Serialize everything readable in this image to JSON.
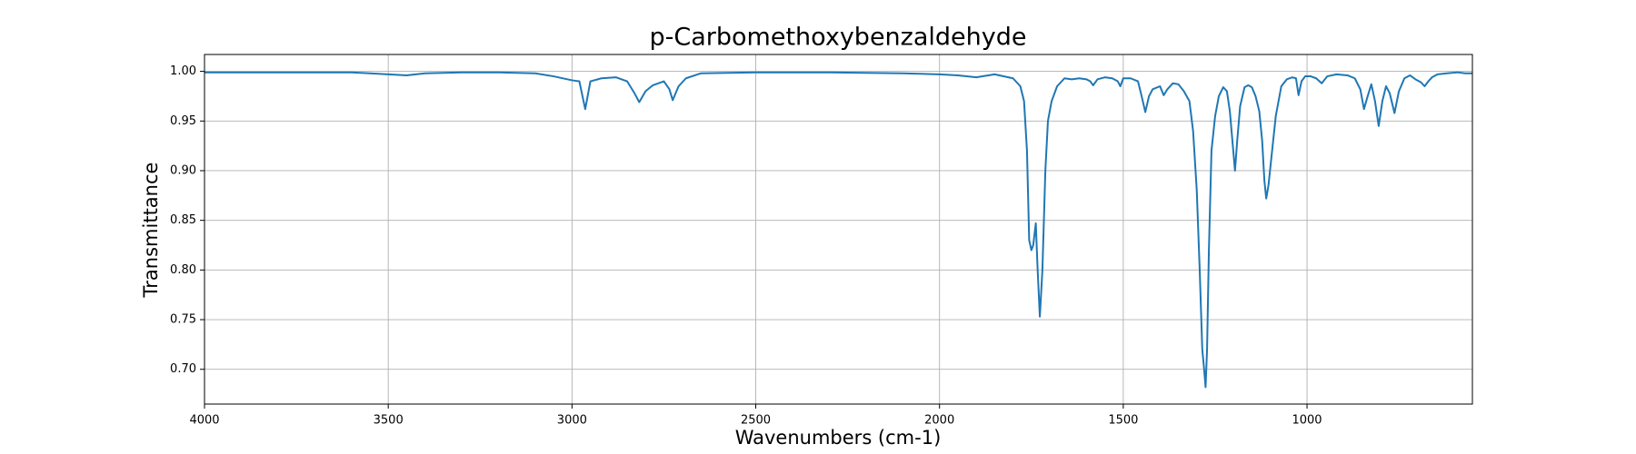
{
  "chart_data": {
    "type": "line",
    "title": "p-Carbomethoxybenzaldehyde",
    "x_label": "Wavenumbers (cm-1)",
    "y_label": "Transmittance",
    "color": "#1f77b4",
    "grid": true,
    "x": [
      4000,
      3900,
      3800,
      3700,
      3600,
      3550,
      3500,
      3450,
      3400,
      3300,
      3200,
      3100,
      3050,
      3000,
      2980,
      2964,
      2950,
      2920,
      2880,
      2850,
      2830,
      2817,
      2800,
      2780,
      2750,
      2735,
      2726,
      2710,
      2690,
      2650,
      2500,
      2300,
      2100,
      2000,
      1950,
      1900,
      1850,
      1800,
      1780,
      1770,
      1762,
      1756,
      1750,
      1745,
      1738,
      1733,
      1727,
      1720,
      1712,
      1705,
      1695,
      1680,
      1660,
      1640,
      1620,
      1600,
      1590,
      1582,
      1570,
      1550,
      1530,
      1515,
      1508,
      1500,
      1480,
      1460,
      1450,
      1440,
      1430,
      1420,
      1400,
      1390,
      1380,
      1365,
      1350,
      1335,
      1320,
      1310,
      1300,
      1292,
      1285,
      1280,
      1276,
      1272,
      1267,
      1260,
      1250,
      1240,
      1228,
      1218,
      1210,
      1203,
      1196,
      1190,
      1182,
      1170,
      1160,
      1150,
      1140,
      1130,
      1122,
      1116,
      1111,
      1105,
      1095,
      1085,
      1070,
      1055,
      1040,
      1030,
      1023,
      1015,
      1005,
      990,
      975,
      960,
      945,
      920,
      890,
      870,
      855,
      845,
      835,
      825,
      815,
      805,
      795,
      785,
      775,
      762,
      750,
      735,
      720,
      705,
      690,
      680,
      670,
      660,
      645,
      620,
      590,
      570,
      550
    ],
    "values": [
      0.999,
      0.999,
      0.999,
      0.999,
      0.999,
      0.998,
      0.997,
      0.996,
      0.998,
      0.999,
      0.999,
      0.998,
      0.995,
      0.991,
      0.99,
      0.962,
      0.99,
      0.993,
      0.994,
      0.99,
      0.978,
      0.969,
      0.98,
      0.986,
      0.99,
      0.982,
      0.971,
      0.985,
      0.993,
      0.998,
      0.999,
      0.999,
      0.998,
      0.997,
      0.996,
      0.994,
      0.997,
      0.993,
      0.985,
      0.97,
      0.92,
      0.83,
      0.82,
      0.825,
      0.847,
      0.8,
      0.753,
      0.8,
      0.9,
      0.95,
      0.97,
      0.985,
      0.993,
      0.992,
      0.993,
      0.992,
      0.99,
      0.986,
      0.992,
      0.994,
      0.993,
      0.99,
      0.985,
      0.993,
      0.993,
      0.99,
      0.975,
      0.959,
      0.975,
      0.982,
      0.985,
      0.976,
      0.982,
      0.988,
      0.987,
      0.98,
      0.97,
      0.94,
      0.88,
      0.8,
      0.72,
      0.7,
      0.682,
      0.72,
      0.82,
      0.92,
      0.955,
      0.975,
      0.984,
      0.98,
      0.96,
      0.93,
      0.9,
      0.93,
      0.965,
      0.984,
      0.986,
      0.984,
      0.975,
      0.96,
      0.93,
      0.89,
      0.872,
      0.885,
      0.92,
      0.955,
      0.985,
      0.992,
      0.994,
      0.993,
      0.976,
      0.99,
      0.995,
      0.995,
      0.993,
      0.988,
      0.995,
      0.997,
      0.996,
      0.993,
      0.982,
      0.962,
      0.975,
      0.987,
      0.97,
      0.945,
      0.97,
      0.985,
      0.978,
      0.958,
      0.98,
      0.993,
      0.996,
      0.992,
      0.989,
      0.985,
      0.99,
      0.994,
      0.997,
      0.998,
      0.999,
      0.998,
      0.998
    ],
    "xlim": [
      4000,
      550
    ],
    "ylim": [
      0.665,
      1.017
    ],
    "xticks": [
      4000,
      3500,
      3000,
      2500,
      2000,
      1500,
      1000
    ],
    "yticks": [
      {
        "value": 0.7,
        "label": "0.70"
      },
      0.75,
      {
        "value": 0.8,
        "label": "0.80"
      },
      0.85,
      {
        "value": 0.9,
        "label": "0.90"
      },
      0.95,
      {
        "value": 1.0,
        "label": "1.00"
      }
    ]
  }
}
